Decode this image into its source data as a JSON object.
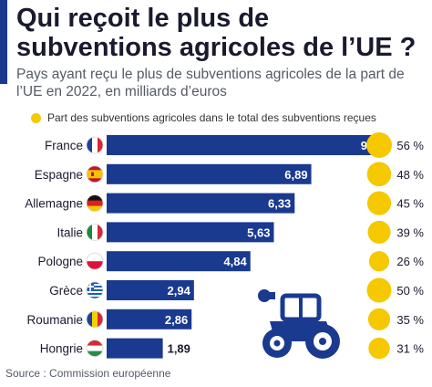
{
  "title": "Qui reçoit le plus de subventions agricoles de l’UE ?",
  "subtitle": "Pays ayant reçu le plus de subventions agricoles de la part de l’UE en 2022, en milliards d’euros",
  "legend_label": "Part des subventions agricoles dans le total des subventions reçues",
  "source": "Source : Commission européenne",
  "colors": {
    "bar": "#1a3a8f",
    "bubble": "#f5c800",
    "accent": "#1a3a8f"
  },
  "chart_data": {
    "type": "bar",
    "orientation": "horizontal",
    "categories": [
      "France",
      "Espagne",
      "Allemagne",
      "Italie",
      "Pologne",
      "Grèce",
      "Roumanie",
      "Hongrie"
    ],
    "values": [
      9.45,
      6.89,
      6.33,
      5.63,
      4.84,
      2.94,
      2.86,
      1.89
    ],
    "value_labels": [
      "9,45",
      "6,89",
      "6,33",
      "5,63",
      "4,84",
      "2,94",
      "2,86",
      "1,89"
    ],
    "share_percent": [
      56,
      48,
      45,
      39,
      26,
      50,
      35,
      31
    ],
    "share_labels": [
      "56 %",
      "48 %",
      "45 %",
      "39 %",
      "26 %",
      "50 %",
      "35 %",
      "31 %"
    ],
    "flags": [
      "flag-france-icon",
      "flag-spain-icon",
      "flag-germany-icon",
      "flag-italy-icon",
      "flag-poland-icon",
      "flag-greece-icon",
      "flag-romania-icon",
      "flag-hungary-icon"
    ]
  }
}
